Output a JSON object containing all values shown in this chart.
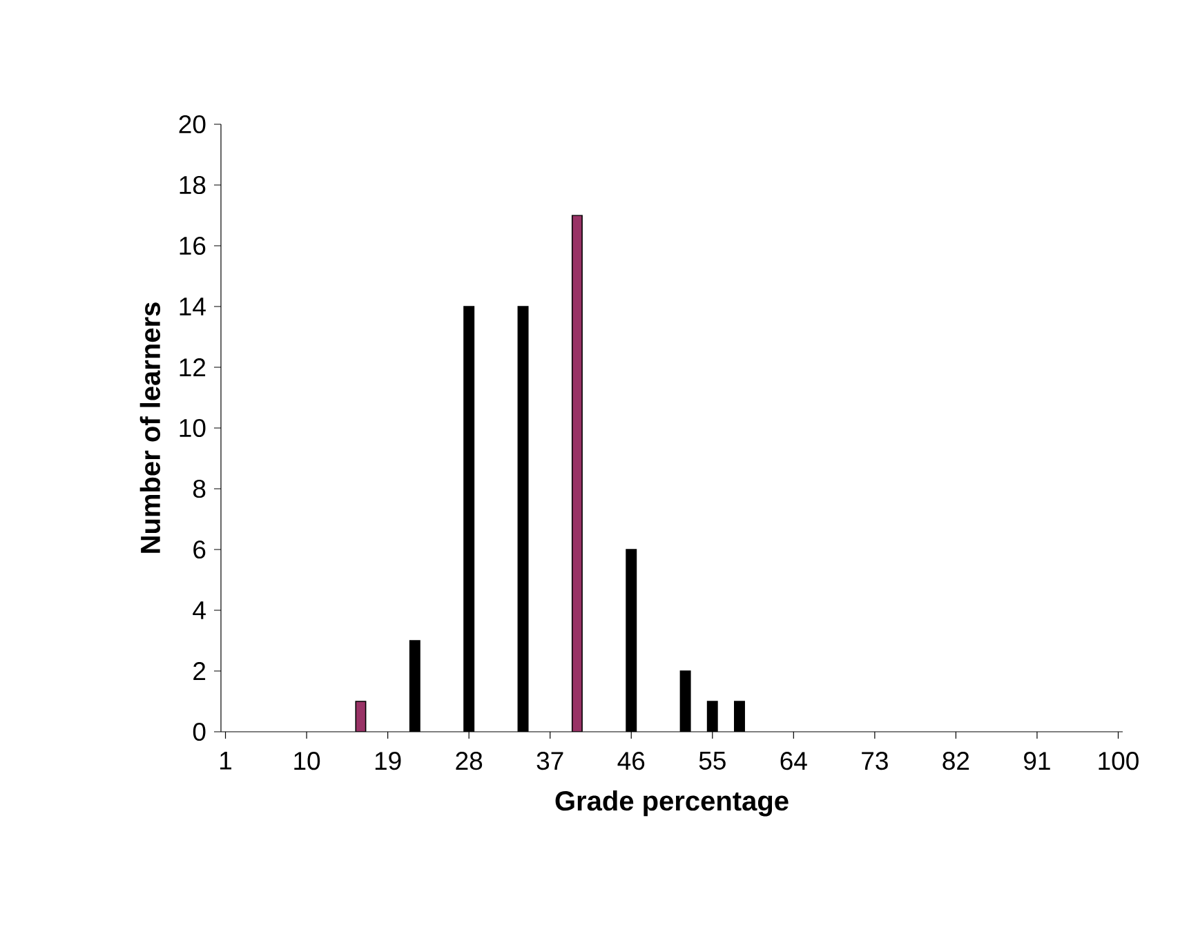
{
  "chart_data": {
    "type": "bar",
    "xlabel": "Grade percentage",
    "ylabel": "Number of learners",
    "x": [
      16,
      22,
      28,
      34,
      40,
      46,
      52,
      55,
      58
    ],
    "values": [
      1,
      3,
      14,
      14,
      17,
      6,
      2,
      1,
      1
    ],
    "colors": [
      "#993366",
      "#000000",
      "#000000",
      "#000000",
      "#993366",
      "#000000",
      "#000000",
      "#000000",
      "#000000"
    ],
    "xlim": [
      0.5,
      100.5
    ],
    "xticks": [
      1,
      10,
      19,
      28,
      37,
      46,
      55,
      64,
      73,
      82,
      91,
      100
    ],
    "ylim": [
      0,
      20
    ],
    "yticks": [
      0,
      2,
      4,
      6,
      8,
      10,
      12,
      14,
      16,
      18,
      20
    ]
  }
}
